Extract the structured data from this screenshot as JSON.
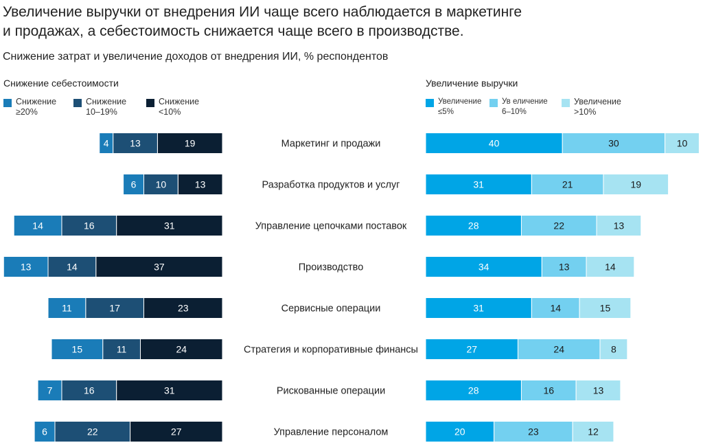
{
  "title_line1": "Увеличение выручки от внедрения ИИ чаще всего наблюдается в маркетинге",
  "title_line2": "и продажах, а себестоимость снижается чаще всего в производстве.",
  "subtitle": "Снижение затрат и увеличение доходов от внедрения ИИ, % респондентов",
  "colors": {
    "cost_ge20": "#1a7cb8",
    "cost_10_19": "#1d4f75",
    "cost_lt10": "#0b1f33",
    "rev_le5": "#00a5e6",
    "rev_6_10": "#73d0f0",
    "rev_gt10": "#a6e3f2"
  },
  "chart_data": {
    "type": "bar",
    "orientation": "horizontal",
    "stacked": true,
    "categories": [
      "Маркетинг и продажи",
      "Разработка продуктов и услуг",
      "Управление цепочками поставок",
      "Производство",
      "Сервисные операции",
      "Стратегия и корпоративные финансы",
      "Рискованные операции",
      "Управление персоналом"
    ],
    "panels": [
      {
        "title": "Снижение себестоимости",
        "direction": "left",
        "series": [
          {
            "name_lines": [
              "Снижение",
              "≥20%"
            ],
            "color_key": "cost_ge20",
            "values": [
              4,
              6,
              14,
              13,
              11,
              15,
              7,
              6
            ]
          },
          {
            "name_lines": [
              "Снижение",
              "10–19%"
            ],
            "color_key": "cost_10_19",
            "values": [
              13,
              10,
              16,
              14,
              17,
              11,
              16,
              22
            ]
          },
          {
            "name_lines": [
              "Снижение",
              "<10%"
            ],
            "color_key": "cost_lt10",
            "values": [
              19,
              13,
              31,
              37,
              23,
              24,
              31,
              27
            ]
          }
        ]
      },
      {
        "title": "Увеличение выручки",
        "direction": "right",
        "series": [
          {
            "name_lines": [
              "Увеличение",
              "≤5%"
            ],
            "color_key": "rev_le5",
            "values": [
              40,
              31,
              28,
              34,
              31,
              27,
              28,
              20
            ]
          },
          {
            "name_lines": [
              "Ув еличение",
              "6–10%"
            ],
            "color_key": "rev_6_10",
            "values": [
              30,
              21,
              22,
              13,
              14,
              24,
              16,
              23
            ]
          },
          {
            "name_lines": [
              "Увеличение",
              ">10%"
            ],
            "color_key": "rev_gt10",
            "values": [
              10,
              19,
              13,
              14,
              15,
              8,
              13,
              12
            ]
          }
        ]
      }
    ]
  }
}
